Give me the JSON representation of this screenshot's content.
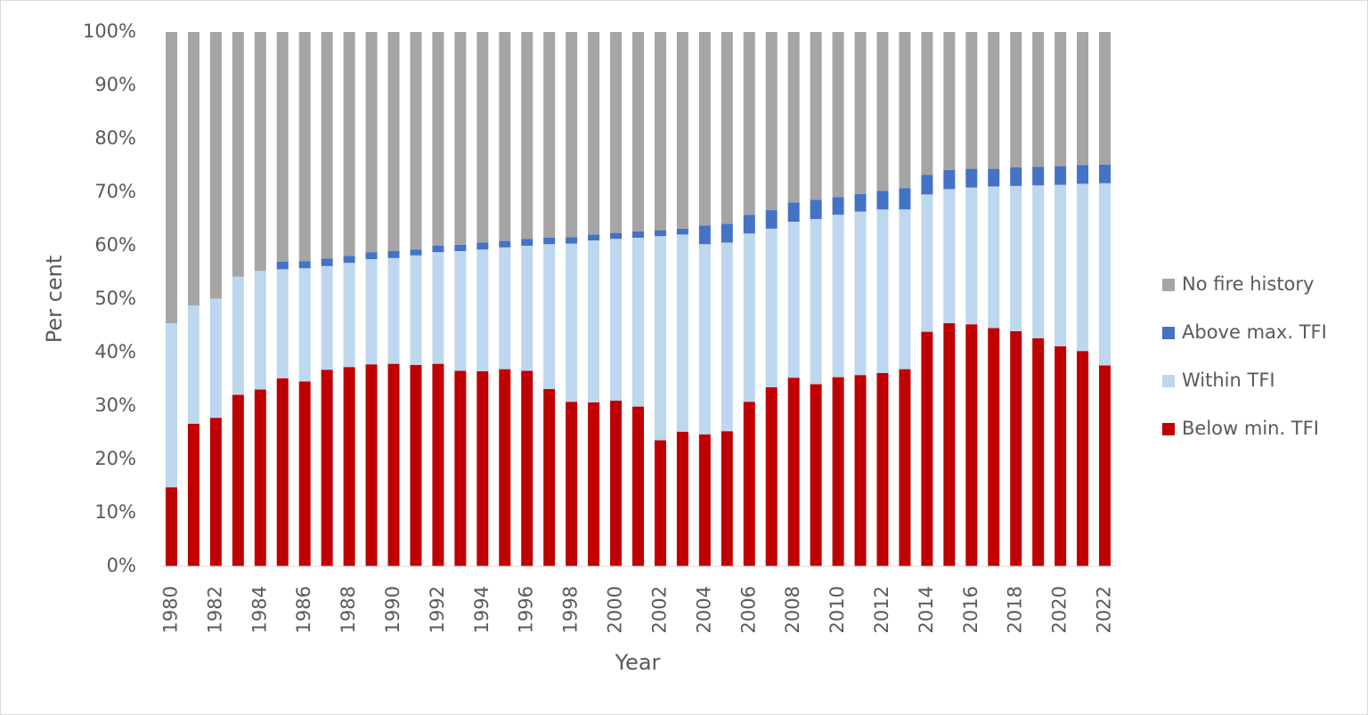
{
  "chart_data": {
    "type": "stacked_bar_percent",
    "x_label": "Year",
    "y_label": "Per cent",
    "categories": [
      "1980",
      null,
      "1982",
      null,
      "1984",
      null,
      "1986",
      null,
      "1988",
      null,
      "1990",
      null,
      "1992",
      null,
      "1994",
      null,
      "1996",
      null,
      "1998",
      null,
      "2000",
      null,
      "2002",
      null,
      "2004",
      null,
      "2006",
      null,
      "2008",
      null,
      "2010",
      null,
      "2012",
      null,
      "2014",
      null,
      "2016",
      null,
      "2018",
      null,
      "2020",
      null,
      "2022"
    ],
    "series": [
      {
        "name": "Below min. TFI",
        "color": "#c00000",
        "values": [
          14.8,
          26.7,
          27.8,
          32.1,
          33.1,
          35.2,
          34.6,
          36.8,
          37.3,
          37.8,
          37.9,
          37.7,
          37.9,
          36.6,
          36.5,
          36.9,
          36.6,
          33.2,
          30.8,
          30.7,
          31.0,
          29.9,
          23.6,
          25.2,
          24.7,
          25.3,
          30.8,
          33.5,
          35.3,
          34.1,
          35.4,
          35.8,
          36.2,
          36.9,
          43.9,
          45.5,
          45.3,
          44.6,
          44.0,
          42.7,
          41.2,
          40.3,
          37.6
        ]
      },
      {
        "name": "Within TFI",
        "color": "#bdd7ee",
        "values": [
          30.7,
          22.1,
          22.3,
          22.1,
          22.2,
          20.4,
          21.2,
          19.4,
          19.5,
          19.7,
          19.8,
          20.5,
          20.9,
          22.4,
          22.8,
          22.8,
          23.4,
          27.1,
          29.6,
          30.3,
          30.3,
          31.6,
          38.2,
          36.9,
          35.6,
          35.3,
          31.5,
          29.7,
          29.2,
          30.9,
          30.4,
          30.6,
          30.6,
          29.9,
          25.7,
          25.1,
          25.6,
          26.5,
          27.2,
          28.6,
          30.2,
          31.3,
          34.1
        ]
      },
      {
        "name": "Above max. TFI",
        "color": "#4472c4",
        "values": [
          0,
          0,
          0,
          0,
          0,
          1.4,
          1.3,
          1.4,
          1.3,
          1.3,
          1.3,
          1.1,
          1.2,
          1.2,
          1.3,
          1.2,
          1.3,
          1.2,
          1.2,
          1.1,
          1.1,
          1.2,
          1.1,
          1.1,
          3.5,
          3.5,
          3.5,
          3.5,
          3.6,
          3.6,
          3.3,
          3.3,
          3.5,
          4.0,
          3.7,
          3.6,
          3.5,
          3.3,
          3.5,
          3.5,
          3.5,
          3.5,
          3.5
        ]
      },
      {
        "name": "No fire history",
        "color": "#a5a5a5",
        "values": [
          54.5,
          51.2,
          49.9,
          45.8,
          44.7,
          43.0,
          42.9,
          42.4,
          41.9,
          41.2,
          41.0,
          40.7,
          40.0,
          39.8,
          39.4,
          39.1,
          38.7,
          38.5,
          38.4,
          37.9,
          37.6,
          37.3,
          37.1,
          36.8,
          36.2,
          35.9,
          34.2,
          33.3,
          31.9,
          31.4,
          30.9,
          30.3,
          29.7,
          29.2,
          26.7,
          25.8,
          25.6,
          25.6,
          25.3,
          25.2,
          25.1,
          24.9,
          24.8
        ]
      }
    ],
    "ylim": [
      0,
      100
    ],
    "yticks": [
      {
        "value": 0,
        "label": "0%"
      },
      {
        "value": 10,
        "label": "10%"
      },
      {
        "value": 20,
        "label": "20%"
      },
      {
        "value": 30,
        "label": "30%"
      },
      {
        "value": 40,
        "label": "40%"
      },
      {
        "value": 50,
        "label": "50%"
      },
      {
        "value": 60,
        "label": "60%"
      },
      {
        "value": 70,
        "label": "70%"
      },
      {
        "value": 80,
        "label": "80%"
      },
      {
        "value": 90,
        "label": "90%"
      },
      {
        "value": 100,
        "label": "100%"
      }
    ],
    "legend": "right"
  }
}
